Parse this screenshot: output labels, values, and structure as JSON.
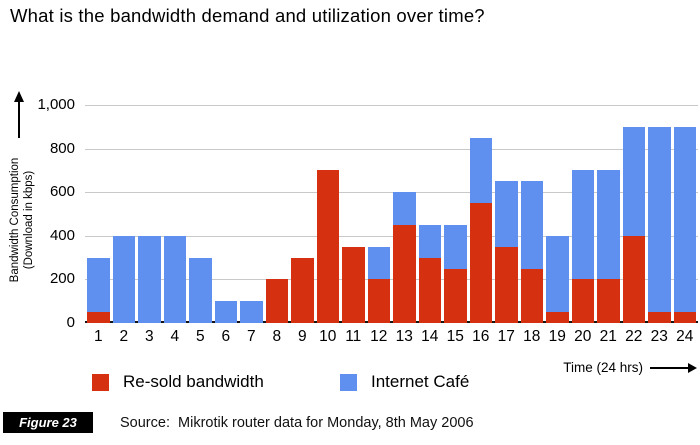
{
  "title": "What is the bandwidth demand and utilization over time?",
  "chart_data": {
    "type": "bar",
    "stacked": true,
    "title": "",
    "xlabel": "Time (24 hrs)",
    "ylabel": "Bandwidth Consumption (Download in kbps)",
    "ylabel_lines": [
      "Bandwidth Consumption",
      "(Download in kbps)"
    ],
    "ylim": [
      0,
      1000
    ],
    "grid": true,
    "legend_position": "bottom",
    "categories": [
      "1",
      "2",
      "3",
      "4",
      "5",
      "6",
      "7",
      "8",
      "9",
      "10",
      "11",
      "12",
      "13",
      "14",
      "15",
      "16",
      "17",
      "18",
      "19",
      "20",
      "21",
      "22",
      "23",
      "24"
    ],
    "yticks": [
      {
        "value": 1000,
        "label": "1,000"
      },
      {
        "value": 800,
        "label": "800"
      },
      {
        "value": 600,
        "label": "600"
      },
      {
        "value": 400,
        "label": "400"
      },
      {
        "value": 200,
        "label": "200"
      },
      {
        "value": 0,
        "label": "0"
      }
    ],
    "series": [
      {
        "name": "Re-sold bandwidth",
        "color": "#d53110",
        "values": [
          50,
          0,
          0,
          0,
          0,
          0,
          0,
          200,
          300,
          700,
          350,
          200,
          450,
          300,
          250,
          550,
          350,
          250,
          50,
          200,
          200,
          400,
          50,
          50
        ]
      },
      {
        "name": "Internet Café",
        "color": "#6090ef",
        "values": [
          250,
          400,
          400,
          400,
          300,
          100,
          100,
          0,
          0,
          0,
          0,
          150,
          150,
          150,
          200,
          300,
          300,
          400,
          350,
          500,
          500,
          500,
          850,
          850
        ]
      }
    ],
    "totals": [
      300,
      400,
      400,
      400,
      300,
      100,
      100,
      200,
      300,
      700,
      350,
      350,
      600,
      450,
      450,
      850,
      650,
      650,
      400,
      700,
      700,
      900,
      900,
      900
    ]
  },
  "footer": {
    "figure_label": "Figure 23",
    "source_text": "Source:  Mikrotik router data for Monday, 8th May 2006"
  }
}
